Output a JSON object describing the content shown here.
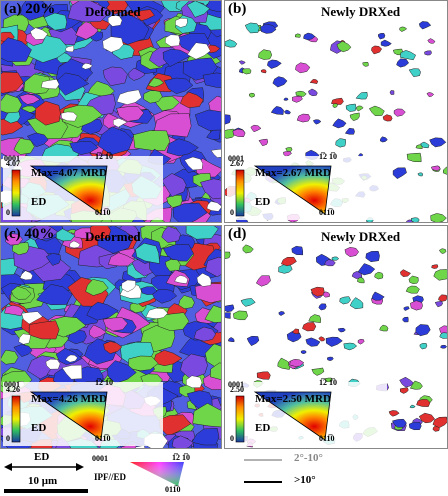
{
  "panels": [
    {
      "id": "a",
      "label": "(a) 20%",
      "title": "Deformed",
      "pf": {
        "max_label": "Max=4.07 MRD",
        "scale_max": "4.07",
        "scale_min": "0",
        "ed": "ED",
        "dir_0001": "0001",
        "dir_1210": "1̅2 1̅0",
        "dir_0110": "011̅0"
      }
    },
    {
      "id": "b",
      "label": "(b)",
      "title": "Newly DRXed",
      "pf": {
        "max_label": "Max=2.67 MRD",
        "scale_max": "2.67",
        "scale_min": "0",
        "ed": "ED",
        "dir_0001": "0001",
        "dir_1210": "1̅2 1̅0",
        "dir_0110": "011̅0"
      }
    },
    {
      "id": "c",
      "label": "(c) 40%",
      "title": "Deformed",
      "pf": {
        "max_label": "Max=4.26 MRD",
        "scale_max": "4.26",
        "scale_min": "0",
        "ed": "ED",
        "dir_0001": "0001",
        "dir_1210": "1̅2 1̅0",
        "dir_0110": "011̅0"
      }
    },
    {
      "id": "d",
      "label": "(d)",
      "title": "Newly DRXed",
      "pf": {
        "max_label": "Max=2.50 MRD",
        "scale_max": "2.50",
        "scale_min": "0",
        "ed": "ED",
        "dir_0001": "0001",
        "dir_1210": "1̅2 1̅0",
        "dir_0110": "011̅0"
      }
    }
  ],
  "legend": {
    "ed_label": "ED",
    "scale_label": "10 μm",
    "ipf_label": "IPF//ED",
    "ipf_0001": "0001",
    "ipf_1210": "1̅2 1̅0",
    "ipf_0110": "011̅0",
    "boundary_low": "2°-10°",
    "boundary_high": ">10°"
  },
  "colors": {
    "blue": "#2c3cd8",
    "green": "#6fd64a",
    "cyan": "#3fd0c8",
    "magenta": "#d94fd4",
    "red": "#e03030",
    "violet": "#7a4ae0"
  }
}
